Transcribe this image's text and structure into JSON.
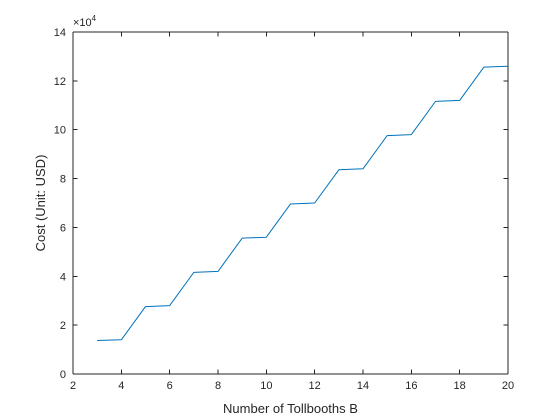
{
  "chart_data": {
    "type": "line",
    "title": "",
    "xlabel": "Number of Tollbooths B",
    "ylabel": "Cost (Unit: USD)",
    "xlim": [
      2,
      20
    ],
    "ylim": [
      0,
      14
    ],
    "y_scale_exponent": {
      "prefix": "×10",
      "power": "4"
    },
    "x_ticks": [
      2,
      4,
      6,
      8,
      10,
      12,
      14,
      16,
      18,
      20
    ],
    "y_ticks": [
      0,
      2,
      4,
      6,
      8,
      10,
      12,
      14
    ],
    "grid": false,
    "series": [
      {
        "name": "Cost",
        "color": "#0072BD",
        "x": [
          3,
          4,
          5,
          6,
          7,
          8,
          9,
          10,
          11,
          12,
          13,
          14,
          15,
          16,
          17,
          18,
          19,
          20
        ],
        "y": [
          1.37,
          1.4,
          2.76,
          2.8,
          4.16,
          4.2,
          5.56,
          5.6,
          6.96,
          7.0,
          8.36,
          8.4,
          9.76,
          9.8,
          11.16,
          11.2,
          12.56,
          12.6
        ]
      }
    ]
  }
}
